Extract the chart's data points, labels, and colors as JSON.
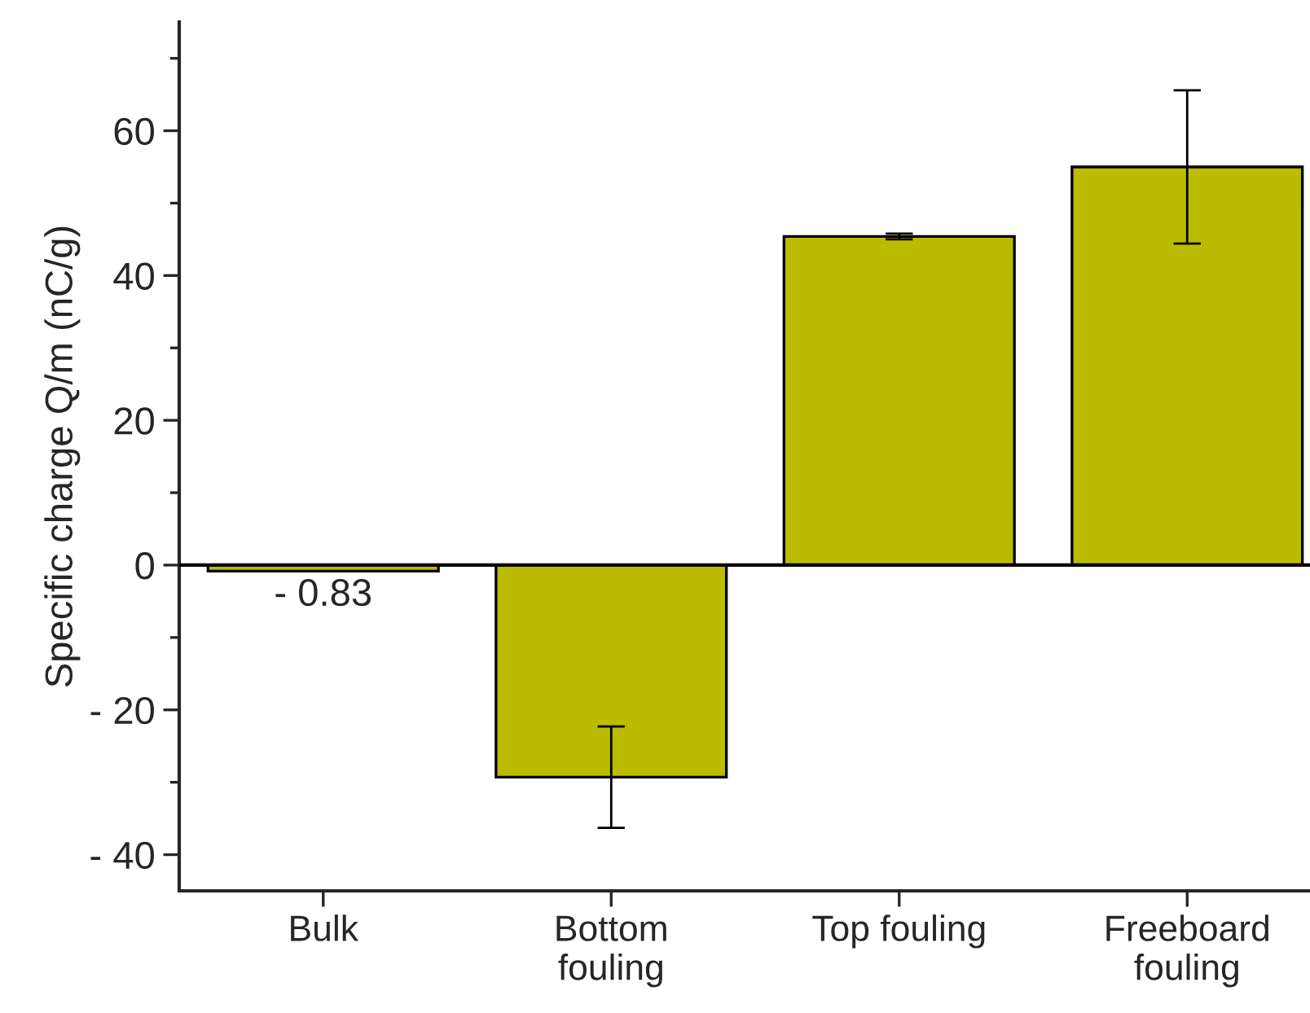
{
  "chart_data": {
    "type": "bar",
    "ylabel": "Specific charge Q/m (nC/g)",
    "categories": [
      "Bulk",
      "Bottom\nfouling",
      "Top fouling",
      "Freeboard\nfouling"
    ],
    "values": [
      -0.83,
      -29.3,
      45.4,
      55.0
    ],
    "errors": [
      null,
      7.0,
      0.4,
      10.6
    ],
    "value_labels": [
      "- 0.83",
      null,
      null,
      null
    ],
    "color": "#bbbb00",
    "ylim": [
      -45,
      75
    ],
    "yticks": [
      {
        "value": -40,
        "label": "- 40"
      },
      {
        "value": -20,
        "label": "- 20"
      },
      0,
      20,
      40,
      60
    ],
    "ref_lines": [
      {
        "axis": "y",
        "value": 0
      }
    ],
    "grid": false
  }
}
